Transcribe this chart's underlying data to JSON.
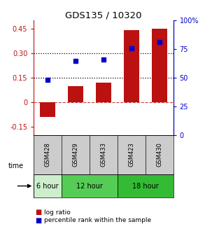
{
  "title": "GDS135 / 10320",
  "samples": [
    "GSM428",
    "GSM429",
    "GSM433",
    "GSM423",
    "GSM430"
  ],
  "log_ratios": [
    -0.09,
    0.1,
    0.12,
    0.44,
    0.45
  ],
  "percentile_ranks": [
    48,
    65,
    66,
    76,
    81
  ],
  "ylim_left": [
    -0.2,
    0.5
  ],
  "ylim_right": [
    0,
    100
  ],
  "left_ticks": [
    -0.15,
    0.0,
    0.15,
    0.3,
    0.45
  ],
  "left_tick_labels": [
    "-0.15",
    "0",
    "0.15",
    "0.30",
    "0.45"
  ],
  "right_ticks": [
    0,
    25,
    50,
    75,
    100
  ],
  "right_tick_labels": [
    "0",
    "25",
    "50",
    "75",
    "100%"
  ],
  "hlines": [
    0.15,
    0.3
  ],
  "bar_color": "#bb1111",
  "dot_color": "#0000cc",
  "zero_line_color": "#bb1111",
  "bg_color": "#ffffff",
  "time_group_colors": [
    "#cceecc",
    "#55cc55",
    "#33bb33"
  ],
  "time_group_labels": [
    "6 hour",
    "12 hour",
    "18 hour"
  ],
  "time_group_boundaries": [
    0,
    1,
    3,
    5
  ],
  "legend_bar_label": "log ratio",
  "legend_dot_label": "percentile rank within the sample"
}
